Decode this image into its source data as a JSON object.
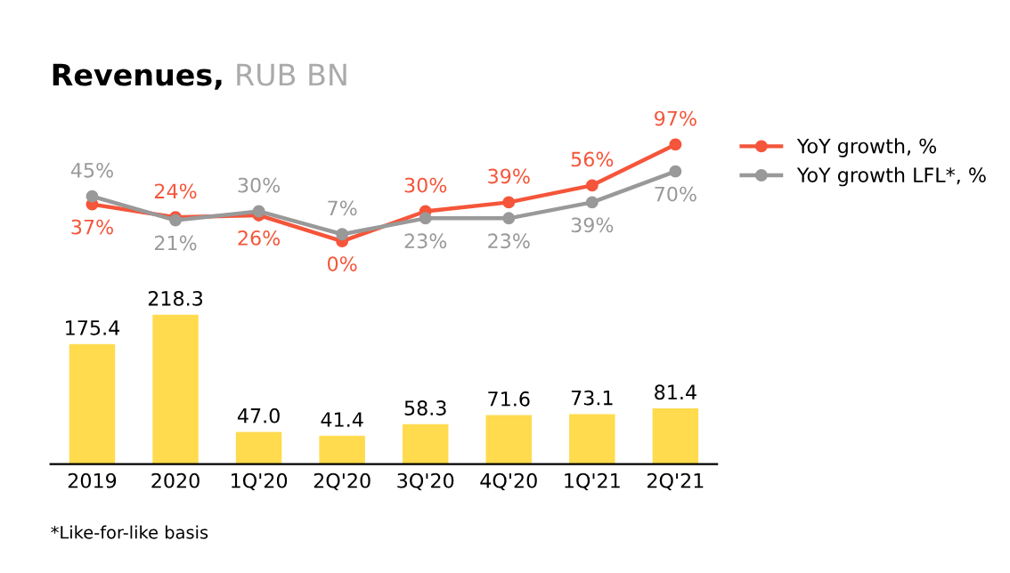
{
  "chart_data": [
    {
      "type": "line",
      "title": "Revenues,",
      "subtitle": "RUB BN",
      "categories": [
        null,
        null,
        null,
        null,
        null,
        null,
        null,
        null
      ],
      "tick_labels": false,
      "legend": "right",
      "marker": "circle",
      "series": [
        {
          "name": "YoY growth, %",
          "color": "#f5553a",
          "values": [
            37,
            24,
            26,
            0,
            30,
            39,
            56,
            97
          ],
          "value_labels": [
            "37%",
            "24%",
            "26%",
            "0%",
            "30%",
            "39%",
            "56%",
            "97%"
          ]
        },
        {
          "name": "YoY growth LFL*, %",
          "color": "#999999",
          "values": [
            45,
            21,
            30,
            7,
            23,
            23,
            39,
            70
          ],
          "value_labels": [
            "45%",
            "21%",
            "30%",
            "7%",
            "23%",
            "23%",
            "39%",
            "70%"
          ]
        }
      ]
    },
    {
      "type": "bar",
      "categories": [
        "2019",
        "2020",
        "1Q'20",
        "2Q'20",
        "3Q'20",
        "4Q'20",
        "1Q'21",
        "2Q'21"
      ],
      "tick_labels": "x",
      "series": [
        {
          "color": "#ffdb4d",
          "values": [
            175.4,
            218.3,
            47.0,
            41.4,
            58.3,
            71.6,
            73.1,
            81.4
          ],
          "value_labels": [
            "175.4",
            "218.3",
            "47.0",
            "41.4",
            "58.3",
            "71.6",
            "73.1",
            "81.4"
          ]
        }
      ],
      "annotations": [
        "*Like-for-like basis"
      ]
    }
  ]
}
